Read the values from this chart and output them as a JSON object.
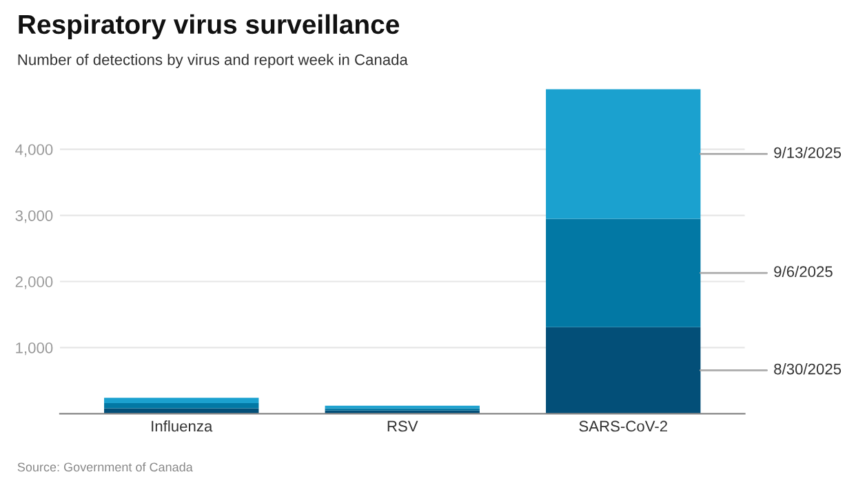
{
  "chart_data": {
    "type": "bar",
    "title": "Respiratory virus surveillance",
    "subtitle": "Number of detections by virus and report week in Canada",
    "categories": [
      "Influenza",
      "RSV",
      "SARS-CoV-2"
    ],
    "stacked": true,
    "series": [
      {
        "name": "8/30/2025",
        "color": "#034f78",
        "values": [
          80,
          50,
          1310
        ]
      },
      {
        "name": "9/6/2025",
        "color": "#0278a4",
        "values": [
          80,
          30,
          1640
        ]
      },
      {
        "name": "9/13/2025",
        "color": "#1ba1cf",
        "values": [
          80,
          40,
          1960
        ]
      }
    ],
    "ylim": [
      0,
      4950
    ],
    "yticks": [
      {
        "value": 1000,
        "label": "1,000"
      },
      {
        "value": 2000,
        "label": "2,000"
      },
      {
        "value": 3000,
        "label": "3,000"
      },
      {
        "value": 4000,
        "label": "4,000"
      }
    ],
    "grid": "y",
    "legend": false,
    "annotations": [
      "Source: Government of Canada"
    ]
  }
}
